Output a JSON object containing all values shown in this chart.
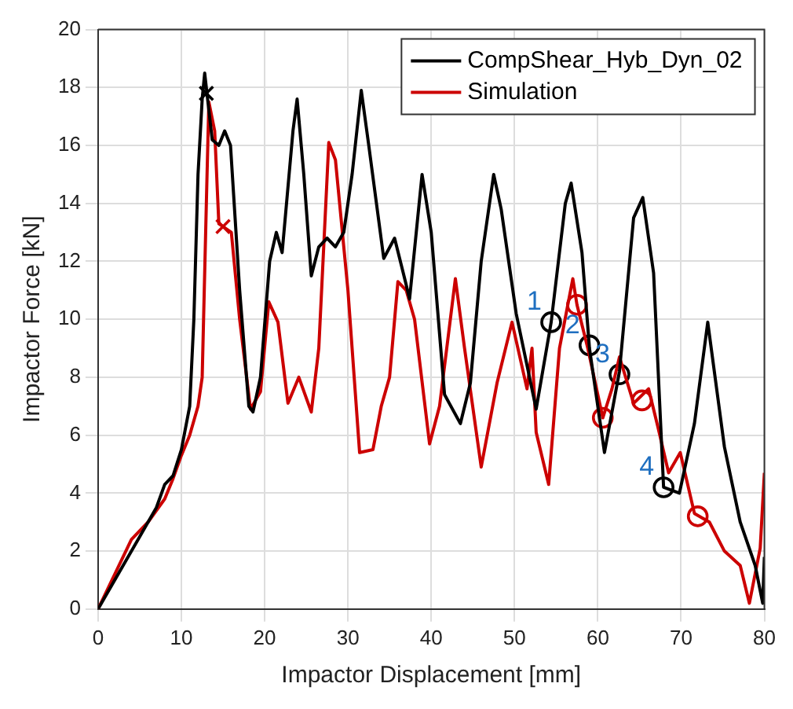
{
  "chart_data": {
    "type": "line",
    "xlabel": "Impactor Displacement [mm]",
    "ylabel": "Impactor Force [kN]",
    "xlim": [
      0,
      80
    ],
    "ylim": [
      0,
      20
    ],
    "xticks": [
      0,
      10,
      20,
      30,
      40,
      50,
      60,
      70,
      80
    ],
    "yticks": [
      0,
      2,
      4,
      6,
      8,
      10,
      12,
      14,
      16,
      18,
      20
    ],
    "grid": true,
    "legend": "top right",
    "marker": "none",
    "line_style": "solid",
    "series": [
      {
        "name": "CompShear_Hyb_Dyn_02",
        "color": "#000000",
        "x": [
          0,
          2,
          5,
          7,
          8,
          9,
          10,
          11,
          11.5,
          12,
          12.5,
          12.8,
          13.7,
          14.5,
          15.2,
          15.9,
          17,
          18.1,
          18.6,
          19.5,
          20.6,
          21.4,
          22.1,
          23.4,
          23.9,
          24.7,
          25.6,
          26.5,
          27.5,
          28.5,
          29.5,
          30.5,
          31.6,
          32.5,
          34.3,
          35.6,
          36.9,
          37.4,
          38.9,
          40,
          41.6,
          43.5,
          44.7,
          46,
          47.5,
          48.4,
          50.2,
          52.6,
          54.4,
          56.1,
          56.8,
          58.1,
          59,
          60.8,
          62.6,
          64.3,
          65.4,
          66.7,
          67.9,
          69.8,
          71.6,
          73.2,
          75.2,
          77.1,
          78.9,
          79.8,
          80
        ],
        "values": [
          0,
          1,
          2.5,
          3.5,
          4.3,
          4.6,
          5.5,
          7,
          10,
          15,
          17.6,
          18.5,
          16.2,
          16,
          16.5,
          16,
          11,
          7,
          6.8,
          8,
          12,
          13,
          12.3,
          16.5,
          17.6,
          15,
          11.5,
          12.5,
          12.8,
          12.5,
          13,
          15,
          17.9,
          16,
          12.1,
          12.8,
          11.3,
          10.7,
          15,
          13,
          7.4,
          6.4,
          7.8,
          12,
          15,
          13.8,
          10.2,
          6.9,
          9.9,
          14,
          14.7,
          12.3,
          9,
          5.4,
          8.2,
          13.5,
          14.2,
          11.6,
          4.2,
          4,
          6.4,
          9.9,
          5.6,
          3,
          1.5,
          0.2,
          1.8
        ]
      },
      {
        "name": "Simulation",
        "color": "#cc0000",
        "x": [
          0,
          2,
          4,
          6,
          8,
          9,
          10,
          11,
          12,
          12.5,
          13,
          13.3,
          14,
          14.5,
          16,
          17,
          18.3,
          19.5,
          20.5,
          21.6,
          22.8,
          24.1,
          25.6,
          26.5,
          27.7,
          28.5,
          30,
          31.4,
          33,
          34,
          35,
          36,
          37,
          38,
          39.8,
          41,
          42.9,
          44,
          46,
          47.9,
          49.7,
          51.5,
          52.1,
          52.6,
          54.1,
          55.4,
          57,
          57.5,
          58.8,
          60.6,
          61.7,
          62.6,
          64.3,
          66.1,
          67.2,
          68.5,
          69.9,
          71.6,
          73.4,
          75.2,
          77.1,
          78.2,
          79.5,
          80
        ],
        "values": [
          0,
          1.2,
          2.4,
          3,
          3.8,
          4.5,
          5.3,
          6,
          7,
          8,
          14,
          17.5,
          16.5,
          13.3,
          13,
          10,
          6.9,
          7.5,
          10.6,
          9.9,
          7.1,
          8,
          6.8,
          9,
          16.1,
          15.5,
          11,
          5.4,
          5.5,
          7,
          8,
          11.3,
          11,
          10,
          5.7,
          7,
          11.4,
          9,
          4.9,
          7.8,
          9.9,
          7.6,
          9,
          6.1,
          4.3,
          9,
          11.4,
          10.5,
          9,
          6.6,
          7.6,
          8.7,
          7.1,
          7.6,
          6.3,
          4.7,
          5.4,
          3.3,
          3,
          2,
          1.5,
          0.2,
          2.1,
          4.7
        ]
      },
      {
        "type": "scatter",
        "marker": "circle",
        "color": "#000000",
        "x": [
          54.4,
          59,
          62.6,
          67.9
        ],
        "values": [
          9.9,
          9.1,
          8.1,
          4.2
        ]
      },
      {
        "type": "scatter",
        "marker": "circle",
        "color": "#cc0000",
        "x": [
          57.5,
          60.6,
          65.3,
          72
        ],
        "values": [
          10.5,
          6.6,
          7.2,
          3.2
        ]
      },
      {
        "type": "scatter",
        "marker": "cross",
        "color": "#000000",
        "x": [
          13
        ],
        "values": [
          17.8
        ]
      },
      {
        "type": "scatter",
        "marker": "cross",
        "color": "#cc0000",
        "x": [
          15
        ],
        "values": [
          13.2
        ]
      }
    ],
    "annotations": [
      {
        "text": "1",
        "x": 54.4,
        "y": 9.9
      },
      {
        "text": "2",
        "x": 59,
        "y": 9.1
      },
      {
        "text": "3",
        "x": 62.6,
        "y": 8.1
      },
      {
        "text": "4",
        "x": 67.9,
        "y": 4.2
      }
    ]
  }
}
